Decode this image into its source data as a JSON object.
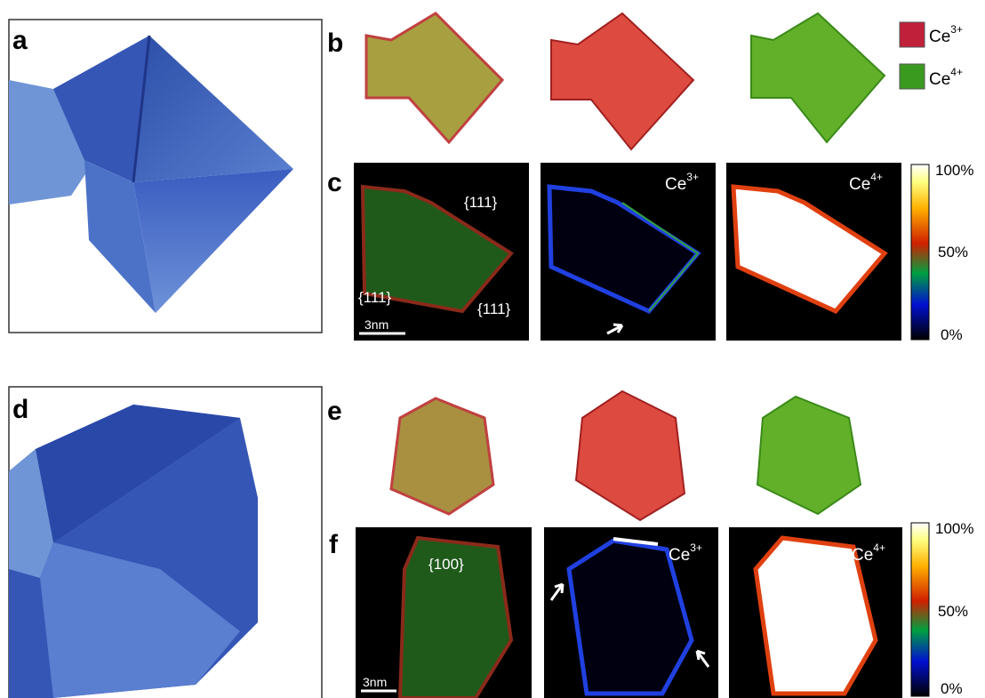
{
  "panels": {
    "a": "a",
    "b": "b",
    "c": "c",
    "d": "d",
    "e": "e",
    "f": "f"
  },
  "legend": [
    {
      "element": "Ce",
      "charge": "3+"
    },
    {
      "element": "Ce",
      "charge": "4+"
    }
  ],
  "panel_c": {
    "facets": [
      "{111}",
      "{111}",
      "{111}"
    ],
    "scale_bar": "3nm",
    "map_labels": [
      {
        "element": "Ce",
        "charge": "3+"
      },
      {
        "element": "Ce",
        "charge": "4+"
      }
    ],
    "colorbar": [
      "100%",
      "50%",
      "0%"
    ]
  },
  "panel_f": {
    "facet": "{100}",
    "scale_bar": "3nm",
    "map_labels": [
      {
        "element": "Ce",
        "charge": "3+"
      },
      {
        "element": "Ce",
        "charge": "4+"
      }
    ],
    "colorbar": [
      "100%",
      "50%",
      "0%"
    ]
  }
}
